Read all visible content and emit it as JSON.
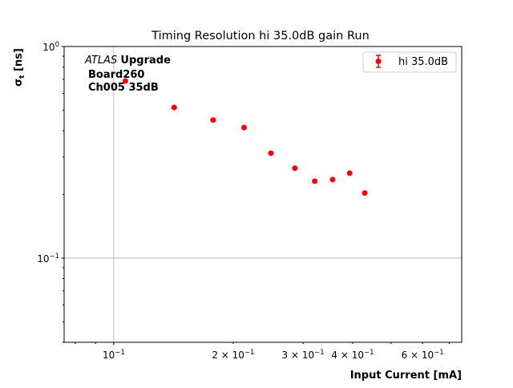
{
  "chart_data": {
    "type": "scatter",
    "title": "Timing Resolution hi 35.0dB gain Run",
    "xlabel": "Input Current [mA]",
    "ylabel": "σ_t [ns]",
    "ylabel_main": "σ",
    "ylabel_sub": "t",
    "ylabel_unit": " [ns]",
    "xscale": "log",
    "yscale": "log",
    "xlim": [
      0.075,
      0.753
    ],
    "ylim": [
      0.04,
      1.0
    ],
    "grid": true,
    "x_tick_labels": [
      {
        "value": 0.1,
        "base": "10",
        "exp": "−1",
        "mant": ""
      },
      {
        "value": 0.2,
        "base": "10",
        "exp": "−1",
        "mant": "2 × "
      },
      {
        "value": 0.3,
        "base": "10",
        "exp": "−1",
        "mant": "3 × "
      },
      {
        "value": 0.4,
        "base": "10",
        "exp": "−1",
        "mant": "4 × "
      },
      {
        "value": 0.6,
        "base": "10",
        "exp": "−1",
        "mant": "6 × "
      }
    ],
    "y_tick_labels": [
      {
        "value": 1.0,
        "base": "10",
        "exp": "0"
      },
      {
        "value": 0.1,
        "base": "10",
        "exp": "−1"
      }
    ],
    "legend": {
      "placement": "top-right",
      "entries": [
        {
          "label": "hi 35.0dB",
          "color": "#ff0000"
        }
      ]
    },
    "annotation": {
      "italic": "ATLAS",
      "bold": "Upgrade",
      "line2": "Board260",
      "line3": "Ch005 35dB"
    },
    "series": [
      {
        "name": "hi 35.0dB",
        "color": "#ff0000",
        "x": [
          0.107,
          0.142,
          0.178,
          0.213,
          0.249,
          0.286,
          0.321,
          0.356,
          0.393,
          0.429
        ],
        "y": [
          0.687,
          0.515,
          0.449,
          0.414,
          0.313,
          0.266,
          0.231,
          0.235,
          0.252,
          0.203
        ]
      }
    ]
  }
}
